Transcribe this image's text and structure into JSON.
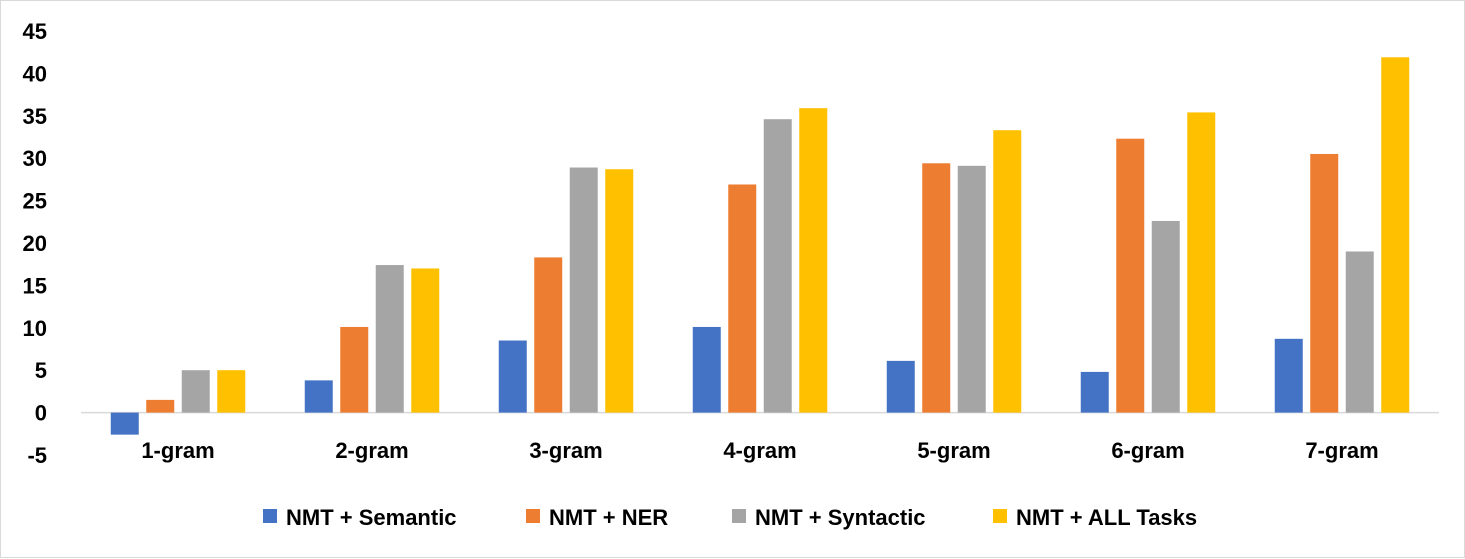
{
  "chart_data": {
    "type": "bar",
    "title": "",
    "xlabel": "",
    "ylabel": "",
    "categories": [
      "1-gram",
      "2-gram",
      "3-gram",
      "4-gram",
      "5-gram",
      "6-gram",
      "7-gram"
    ],
    "ylim": [
      -5,
      45
    ],
    "yticks": [
      -5,
      0,
      5,
      10,
      15,
      20,
      25,
      30,
      35,
      40,
      45
    ],
    "grid": false,
    "legend_position": "bottom",
    "series": [
      {
        "name": "NMT + Semantic",
        "color": "#4472c4",
        "values": [
          -2.6,
          3.8,
          8.5,
          10.1,
          6.1,
          4.8,
          8.7
        ]
      },
      {
        "name": "NMT + NER",
        "color": "#ed7d31",
        "values": [
          1.5,
          10.1,
          18.3,
          26.9,
          29.4,
          32.3,
          30.5
        ]
      },
      {
        "name": "NMT + Syntactic",
        "color": "#a5a5a5",
        "values": [
          5.0,
          17.4,
          28.9,
          34.6,
          29.1,
          22.6,
          19.0
        ]
      },
      {
        "name": "NMT + ALL Tasks",
        "color": "#ffc000",
        "values": [
          5.0,
          17.0,
          28.7,
          35.9,
          33.3,
          35.4,
          41.9
        ]
      }
    ]
  }
}
